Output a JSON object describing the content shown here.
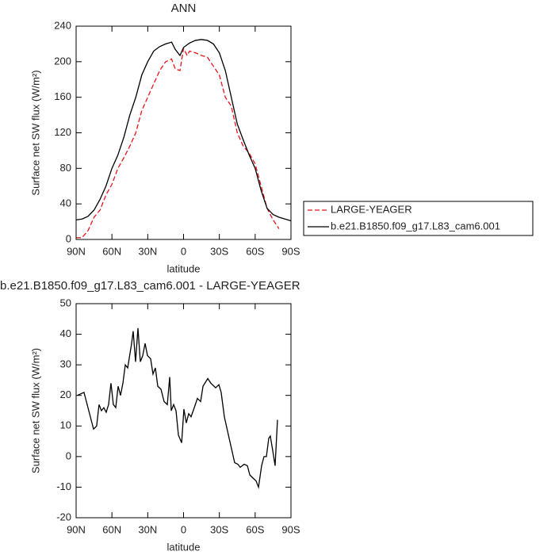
{
  "chart_data": [
    {
      "type": "line",
      "title": "ANN",
      "x_label": "latitude",
      "y_label": "Surface net SW flux (W/m²)",
      "x": [
        90,
        85,
        80,
        75,
        70,
        65,
        60,
        55,
        50,
        45,
        40,
        35,
        30,
        25,
        20,
        15,
        10,
        7,
        3,
        0,
        -3,
        -5,
        -10,
        -15,
        -20,
        -25,
        -30,
        -35,
        -40,
        -45,
        -50,
        -55,
        -60,
        -65,
        -70,
        -75,
        -80,
        -85,
        -90
      ],
      "series": [
        {
          "name": "LARGE-YEAGER",
          "color": "#e8141c",
          "style": "dashed",
          "values": [
            2,
            2,
            10,
            25,
            33,
            50,
            62,
            80,
            92,
            105,
            120,
            145,
            160,
            175,
            190,
            200,
            203,
            192,
            190,
            215,
            207,
            212,
            210,
            207,
            205,
            195,
            185,
            160,
            150,
            120,
            105,
            97,
            85,
            60,
            35,
            22,
            12,
            null,
            null
          ]
        },
        {
          "name": "b.e21.B1850.f09_g17.L83_cam6.001",
          "color": "#000000",
          "style": "solid",
          "values": [
            22,
            23,
            26,
            33,
            45,
            60,
            80,
            95,
            115,
            140,
            160,
            185,
            200,
            212,
            217,
            220,
            222,
            214,
            207,
            216,
            219,
            221,
            224,
            225,
            224,
            220,
            210,
            190,
            160,
            130,
            112,
            95,
            80,
            55,
            35,
            28,
            25,
            23,
            21
          ]
        }
      ],
      "xlim": [
        90,
        -90
      ],
      "xticks": [
        {
          "value": 90,
          "label": "90N"
        },
        {
          "value": 60,
          "label": "60N"
        },
        {
          "value": 30,
          "label": "30N"
        },
        0,
        {
          "value": -30,
          "label": "30S"
        },
        {
          "value": -60,
          "label": "60S"
        },
        {
          "value": -90,
          "label": "90S"
        }
      ],
      "ylim": [
        0,
        240
      ],
      "yticks": [
        0,
        40,
        80,
        120,
        160,
        200,
        240
      ],
      "legend": "right"
    },
    {
      "type": "line",
      "title": "b.e21.B1850.f09_g17.L83_cam6.001 - LARGE-YEAGER",
      "x_label": "latitude",
      "y_label": "Surface net SW flux (W/m²)",
      "x": [
        89,
        83.4,
        79.4,
        75.4,
        72.8,
        70.8,
        68.8,
        66.8,
        64.8,
        62.8,
        60.8,
        58.8,
        56.8,
        54.8,
        52.8,
        50.8,
        48.8,
        46.8,
        43.5,
        42.2,
        40.2,
        38.2,
        36.2,
        34.2,
        32.2,
        30.2,
        27.6,
        25.6,
        23.6,
        21.6,
        18.9,
        16.3,
        13.6,
        11.6,
        10.3,
        8.3,
        6.3,
        4.3,
        1.6,
        -0.3,
        -2.3,
        -4.3,
        -6.3,
        -9,
        -11.6,
        -14.3,
        -16.3,
        -20.3,
        -22.9,
        -26.9,
        -29.6,
        -31.5,
        -34.2,
        -38.2,
        -42.8,
        -45.5,
        -47.5,
        -50.8,
        -53.5,
        -55.5,
        -58.1,
        -60.8,
        -62.8,
        -65.4,
        -67.4,
        -69.4,
        -71.4,
        -72.7,
        -74.7,
        -76.7,
        -78.7
      ],
      "values": [
        20,
        21,
        15,
        9,
        10,
        17,
        15,
        16,
        14.5,
        17,
        24,
        17,
        16,
        23,
        20,
        24,
        30,
        29,
        37,
        41,
        31,
        42,
        31,
        33,
        37,
        33,
        32,
        27,
        29,
        23,
        22,
        18,
        17,
        26,
        15,
        17,
        15,
        7,
        4.5,
        15.5,
        11,
        14,
        13,
        16,
        19,
        18,
        23,
        25.5,
        24,
        22.5,
        23.5,
        21,
        13,
        6,
        -2,
        -2.5,
        -3.5,
        -2.5,
        -3,
        -6,
        -7,
        -8,
        -10,
        -3,
        0,
        0,
        6,
        6.7,
        2,
        -3,
        12
      ],
      "color": "#000000",
      "xlim": [
        90,
        -90
      ],
      "xticks": [
        {
          "value": 90,
          "label": "90N"
        },
        {
          "value": 60,
          "label": "60N"
        },
        {
          "value": 30,
          "label": "30N"
        },
        0,
        {
          "value": -30,
          "label": "30S"
        },
        {
          "value": -60,
          "label": "60S"
        },
        {
          "value": -90,
          "label": "90S"
        }
      ],
      "ylim": [
        -20,
        50
      ],
      "yticks": [
        -20,
        -10,
        0,
        10,
        20,
        30,
        40,
        50
      ]
    }
  ]
}
